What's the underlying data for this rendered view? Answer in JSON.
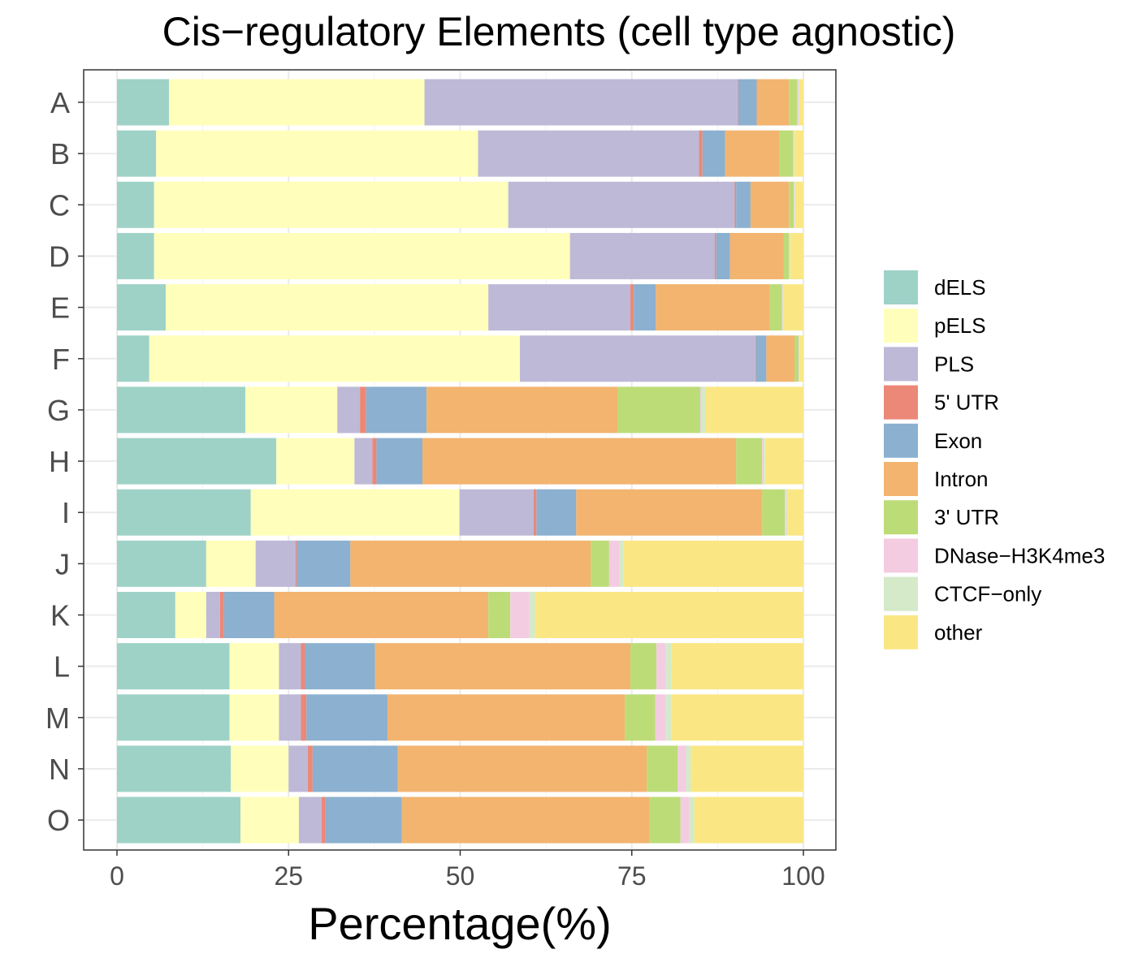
{
  "chart_data": {
    "type": "bar",
    "orientation": "horizontal",
    "stacked": true,
    "title": "Cis−regulatory Elements (cell type agnostic)",
    "xlabel": "Percentage(%)",
    "ylabel": "",
    "xlim": [
      0,
      100
    ],
    "xticks": [
      "0",
      "25",
      "50",
      "75",
      "100"
    ],
    "xtick_values": [
      0,
      25,
      50,
      75,
      100
    ],
    "grid": true,
    "legend_position": "right",
    "categories": [
      "A",
      "B",
      "C",
      "D",
      "E",
      "F",
      "G",
      "H",
      "I",
      "J",
      "K",
      "L",
      "M",
      "N",
      "O"
    ],
    "series": [
      {
        "name": "dELS",
        "color": "#9ED2C7",
        "values": [
          7.6,
          5.7,
          5.4,
          5.4,
          7.1,
          4.7,
          18.7,
          23.2,
          19.5,
          13.0,
          8.5,
          16.4,
          16.4,
          16.6,
          18.0
        ]
      },
      {
        "name": "pELS",
        "color": "#FFFFBB",
        "values": [
          37.2,
          46.9,
          51.6,
          60.6,
          47.0,
          54.0,
          13.4,
          11.4,
          30.4,
          7.2,
          4.5,
          7.2,
          7.2,
          8.4,
          8.5
        ]
      },
      {
        "name": "PLS",
        "color": "#BEB9D7",
        "values": [
          45.6,
          32.2,
          33.0,
          21.1,
          20.7,
          34.3,
          3.3,
          2.6,
          10.8,
          5.8,
          2.0,
          3.2,
          3.2,
          2.8,
          3.3
        ]
      },
      {
        "name": "5' UTR",
        "color": "#EB8878",
        "values": [
          0.1,
          0.5,
          0.2,
          0.2,
          0.5,
          0.1,
          0.9,
          0.6,
          0.4,
          0.2,
          0.6,
          0.6,
          0.8,
          0.7,
          0.6
        ]
      },
      {
        "name": "Exon",
        "color": "#8BB0D0",
        "values": [
          2.7,
          3.3,
          2.1,
          2.0,
          3.2,
          1.5,
          8.8,
          6.7,
          5.8,
          7.8,
          7.3,
          10.2,
          11.8,
          12.4,
          11.1
        ]
      },
      {
        "name": "Intron",
        "color": "#F2B46F",
        "values": [
          4.7,
          7.9,
          5.6,
          7.8,
          16.6,
          4.1,
          27.8,
          45.7,
          27.1,
          35.0,
          31.2,
          37.2,
          34.6,
          36.3,
          36.1
        ]
      },
      {
        "name": "3' UTR",
        "color": "#BCDC78",
        "values": [
          1.2,
          2.0,
          0.7,
          0.8,
          1.8,
          0.6,
          12.1,
          3.8,
          3.3,
          2.7,
          3.2,
          3.8,
          4.4,
          4.5,
          4.5
        ]
      },
      {
        "name": "DNase−H3K4me3",
        "color": "#F4CCE2",
        "values": [
          0.2,
          0.1,
          0.1,
          0.1,
          0.1,
          0.1,
          0.2,
          0.2,
          0.2,
          1.5,
          2.8,
          1.3,
          1.5,
          1.2,
          1.3
        ]
      },
      {
        "name": "CTCF−only",
        "color": "#D4EAC9",
        "values": [
          0.1,
          0.1,
          0.1,
          0.1,
          0.1,
          0.1,
          0.6,
          0.2,
          0.2,
          0.6,
          0.8,
          0.9,
          0.9,
          0.7,
          0.7
        ]
      },
      {
        "name": "other",
        "color": "#FAE784",
        "values": [
          0.6,
          1.3,
          1.2,
          1.9,
          2.9,
          0.5,
          14.2,
          5.6,
          2.3,
          26.2,
          39.1,
          19.2,
          19.2,
          16.4,
          15.9
        ]
      }
    ]
  }
}
